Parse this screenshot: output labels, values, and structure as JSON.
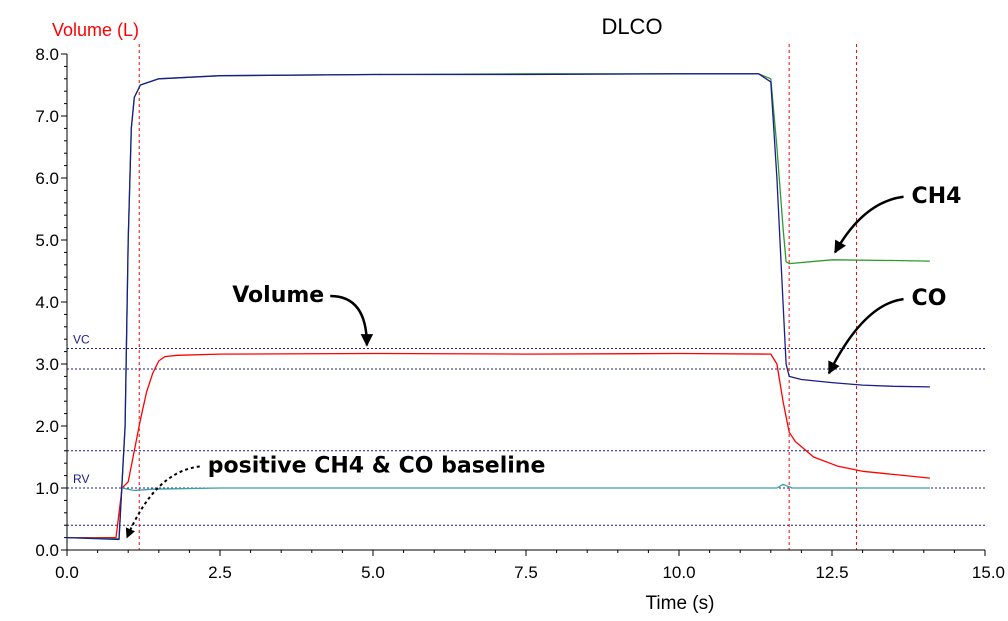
{
  "chart_data": {
    "type": "line",
    "title": "DLCO",
    "ylabel": "Volume (L)",
    "xlabel": "Time (s)",
    "xlim": [
      0,
      15
    ],
    "ylim": [
      0,
      8
    ],
    "x_ticks": [
      "0.0",
      "2.5",
      "5.0",
      "7.5",
      "10.0",
      "12.5",
      "15.0"
    ],
    "y_ticks": [
      "0.0",
      "1.0",
      "2.0",
      "3.0",
      "4.0",
      "5.0",
      "6.0",
      "7.0",
      "8.0"
    ],
    "grid": false,
    "series": [
      {
        "name": "Volume",
        "color": "#ff0000",
        "points": [
          [
            0.0,
            0.2
          ],
          [
            0.8,
            0.2
          ],
          [
            0.9,
            1.0
          ],
          [
            1.0,
            1.1
          ],
          [
            1.1,
            1.6
          ],
          [
            1.2,
            2.1
          ],
          [
            1.3,
            2.55
          ],
          [
            1.4,
            2.85
          ],
          [
            1.5,
            3.05
          ],
          [
            1.6,
            3.12
          ],
          [
            1.8,
            3.14
          ],
          [
            2.5,
            3.16
          ],
          [
            5.0,
            3.17
          ],
          [
            7.5,
            3.16
          ],
          [
            10.0,
            3.17
          ],
          [
            11.5,
            3.16
          ],
          [
            11.6,
            3.0
          ],
          [
            11.7,
            2.4
          ],
          [
            11.8,
            1.9
          ],
          [
            11.9,
            1.75
          ],
          [
            12.2,
            1.5
          ],
          [
            12.6,
            1.35
          ],
          [
            13.0,
            1.27
          ],
          [
            13.5,
            1.22
          ],
          [
            14.0,
            1.17
          ],
          [
            14.1,
            1.16
          ]
        ]
      },
      {
        "name": "CH4",
        "color": "#2e9a2e",
        "points": [
          [
            0.0,
            0.2
          ],
          [
            0.85,
            0.18
          ],
          [
            0.95,
            2.0
          ],
          [
            1.0,
            5.0
          ],
          [
            1.05,
            6.8
          ],
          [
            1.1,
            7.3
          ],
          [
            1.2,
            7.5
          ],
          [
            1.5,
            7.6
          ],
          [
            2.5,
            7.65
          ],
          [
            5.0,
            7.67
          ],
          [
            7.5,
            7.68
          ],
          [
            10.0,
            7.68
          ],
          [
            11.3,
            7.68
          ],
          [
            11.5,
            7.6
          ],
          [
            11.6,
            6.5
          ],
          [
            11.7,
            5.2
          ],
          [
            11.75,
            4.65
          ],
          [
            11.8,
            4.62
          ],
          [
            12.5,
            4.68
          ],
          [
            13.5,
            4.67
          ],
          [
            14.1,
            4.66
          ]
        ]
      },
      {
        "name": "CO",
        "color": "#1c1c8c",
        "points": [
          [
            0.0,
            0.2
          ],
          [
            0.85,
            0.17
          ],
          [
            0.95,
            2.0
          ],
          [
            1.0,
            5.0
          ],
          [
            1.05,
            6.8
          ],
          [
            1.1,
            7.3
          ],
          [
            1.2,
            7.5
          ],
          [
            1.5,
            7.6
          ],
          [
            2.5,
            7.65
          ],
          [
            5.0,
            7.67
          ],
          [
            7.5,
            7.67
          ],
          [
            10.0,
            7.68
          ],
          [
            11.3,
            7.68
          ],
          [
            11.5,
            7.55
          ],
          [
            11.6,
            6.0
          ],
          [
            11.7,
            4.0
          ],
          [
            11.75,
            3.0
          ],
          [
            11.8,
            2.8
          ],
          [
            12.0,
            2.75
          ],
          [
            12.5,
            2.7
          ],
          [
            13.0,
            2.66
          ],
          [
            13.5,
            2.64
          ],
          [
            14.1,
            2.63
          ]
        ]
      },
      {
        "name": "baseline",
        "color": "#3aa0a8",
        "points": [
          [
            0.9,
            1.0
          ],
          [
            1.1,
            0.96
          ],
          [
            1.4,
            0.98
          ],
          [
            2.5,
            1.0
          ],
          [
            5.0,
            1.0
          ],
          [
            7.5,
            1.0
          ],
          [
            10.0,
            1.0
          ],
          [
            11.6,
            1.0
          ],
          [
            11.7,
            1.06
          ],
          [
            11.85,
            1.0
          ],
          [
            14.1,
            1.0
          ]
        ]
      }
    ],
    "reference_lines": [
      {
        "label": "VC",
        "y": 3.25,
        "color": "#1c1c8c"
      },
      {
        "label": "",
        "y": 2.92,
        "color": "#1c1c8c"
      },
      {
        "label": "",
        "y": 1.6,
        "color": "#1c1c8c"
      },
      {
        "label": "RV",
        "y": 1.0,
        "color": "#1c1c8c"
      },
      {
        "label": "",
        "y": 0.4,
        "color": "#1c1c8c"
      }
    ],
    "marker_lines": [
      {
        "x": 1.18,
        "color": "#ff0000"
      },
      {
        "x": 11.8,
        "color": "#ff0000"
      },
      {
        "x": 12.9,
        "color": "#ff0000"
      }
    ],
    "annotations": [
      {
        "text": "CH4",
        "tx": 13.8,
        "ty": 5.6,
        "ax": 12.55,
        "ay": 4.8
      },
      {
        "text": "CO",
        "tx": 13.8,
        "ty": 3.95,
        "ax": 12.45,
        "ay": 2.85
      },
      {
        "text": "Volume",
        "tx": 2.7,
        "ty": 4.0,
        "ax": 4.9,
        "ay": 3.3
      },
      {
        "text": "positive CH4 & CO baseline",
        "tx": 2.3,
        "ty": 1.25,
        "ax": 0.98,
        "ay": 0.2
      }
    ]
  }
}
